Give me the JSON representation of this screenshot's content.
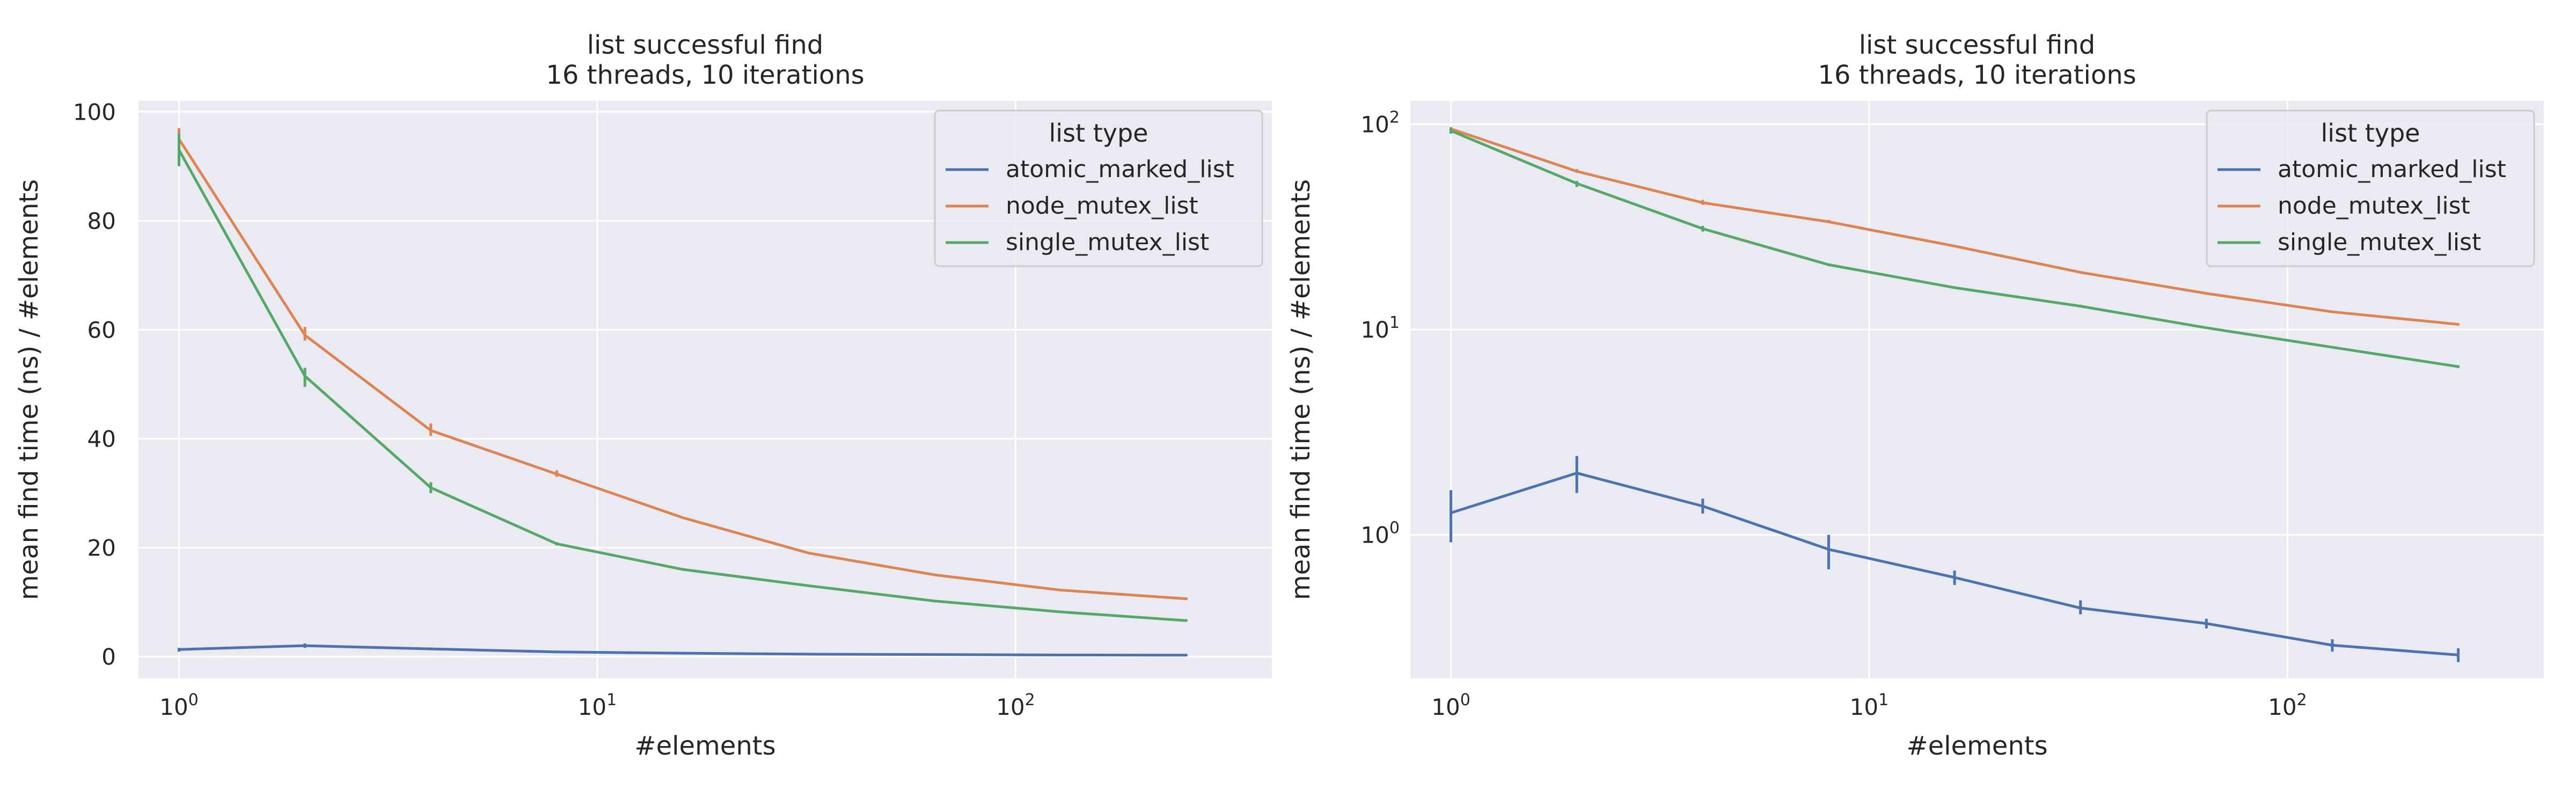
{
  "colors": {
    "atomic_marked_list": "#4c72b0",
    "node_mutex_list": "#dd8452",
    "single_mutex_list": "#55a868"
  },
  "chart_data": [
    {
      "type": "line",
      "title_line1": "list successful find",
      "title_line2": "16 threads, 10 iterations",
      "xlabel": "#elements",
      "ylabel": "mean find time (ns) / #elements",
      "xscale": "log",
      "yscale": "linear",
      "xlim": [
        0.8,
        410
      ],
      "ylim": [
        -4,
        102
      ],
      "x_ticks": [
        {
          "value": 1,
          "base": "10",
          "exp": "0"
        },
        {
          "value": 10,
          "base": "10",
          "exp": "1"
        },
        {
          "value": 100,
          "base": "10",
          "exp": "2"
        }
      ],
      "y_ticks": [
        {
          "value": 0,
          "label": "0"
        },
        {
          "value": 20,
          "label": "20"
        },
        {
          "value": 40,
          "label": "40"
        },
        {
          "value": 60,
          "label": "60"
        },
        {
          "value": 80,
          "label": "80"
        },
        {
          "value": 100,
          "label": "100"
        }
      ],
      "grid": true,
      "legend": {
        "title": "list type",
        "placement": "top-right"
      },
      "x": [
        1,
        2,
        4,
        8,
        16,
        32,
        64,
        128,
        256
      ],
      "series": [
        {
          "name": "atomic_marked_list",
          "values": [
            1.3,
            2.0,
            1.4,
            0.85,
            0.62,
            0.44,
            0.37,
            0.29,
            0.26
          ],
          "err_low": [
            0.9,
            1.6,
            1.3,
            0.7,
            0.58,
            0.41,
            0.35,
            0.27,
            0.24
          ],
          "err_high": [
            1.6,
            2.4,
            1.5,
            1.0,
            0.66,
            0.47,
            0.39,
            0.31,
            0.28
          ]
        },
        {
          "name": "node_mutex_list",
          "values": [
            95,
            59,
            41.5,
            33.5,
            25.5,
            19,
            15,
            12.2,
            10.6
          ],
          "err_low": [
            93,
            58,
            40.5,
            33.0,
            25.3,
            18.9,
            14.9,
            12.1,
            10.5
          ],
          "err_high": [
            97,
            60.5,
            42.8,
            34.2,
            25.7,
            19.2,
            15.1,
            12.3,
            10.7
          ]
        },
        {
          "name": "single_mutex_list",
          "values": [
            93,
            51.5,
            31,
            20.7,
            16,
            13,
            10.2,
            8.2,
            6.6
          ],
          "err_low": [
            90,
            49.5,
            30,
            20.4,
            15.8,
            12.8,
            10.1,
            8.1,
            6.5
          ],
          "err_high": [
            96,
            53,
            32,
            21.0,
            16.2,
            13.2,
            10.3,
            8.3,
            6.7
          ]
        }
      ]
    },
    {
      "type": "line",
      "title_line1": "list successful find",
      "title_line2": "16 threads, 10 iterations",
      "xlabel": "#elements",
      "ylabel": "mean find time (ns) / #elements",
      "xscale": "log",
      "yscale": "log",
      "xlim": [
        0.8,
        410
      ],
      "ylim": [
        0.2,
        130
      ],
      "x_ticks": [
        {
          "value": 1,
          "base": "10",
          "exp": "0"
        },
        {
          "value": 10,
          "base": "10",
          "exp": "1"
        },
        {
          "value": 100,
          "base": "10",
          "exp": "2"
        }
      ],
      "y_ticks": [
        {
          "value": 1,
          "base": "10",
          "exp": "0"
        },
        {
          "value": 10,
          "base": "10",
          "exp": "1"
        },
        {
          "value": 100,
          "base": "10",
          "exp": "2"
        }
      ],
      "grid": true,
      "legend": {
        "title": "list type",
        "placement": "top-right"
      },
      "x": [
        1,
        2,
        4,
        8,
        16,
        32,
        64,
        128,
        256
      ],
      "series": [
        {
          "name": "atomic_marked_list",
          "values": [
            1.28,
            2.0,
            1.38,
            0.85,
            0.62,
            0.44,
            0.37,
            0.29,
            0.26
          ],
          "err_low": [
            0.92,
            1.6,
            1.27,
            0.68,
            0.57,
            0.41,
            0.35,
            0.27,
            0.24
          ],
          "err_high": [
            1.65,
            2.42,
            1.5,
            1.0,
            0.67,
            0.48,
            0.39,
            0.31,
            0.28
          ]
        },
        {
          "name": "node_mutex_list",
          "values": [
            95,
            59,
            41.5,
            33.5,
            25.5,
            19,
            15,
            12.2,
            10.6
          ],
          "err_low": [
            93,
            58,
            40.5,
            33.0,
            25.3,
            18.9,
            14.9,
            12.1,
            10.5
          ],
          "err_high": [
            97,
            60.5,
            42.8,
            34.2,
            25.7,
            19.2,
            15.1,
            12.3,
            10.7
          ]
        },
        {
          "name": "single_mutex_list",
          "values": [
            93,
            51.5,
            31,
            20.7,
            16,
            13,
            10.2,
            8.2,
            6.6
          ],
          "err_low": [
            90,
            49.5,
            30,
            20.4,
            15.8,
            12.8,
            10.1,
            8.1,
            6.5
          ],
          "err_high": [
            96,
            53,
            32,
            21.0,
            16.2,
            13.2,
            10.3,
            8.3,
            6.7
          ]
        }
      ]
    }
  ]
}
